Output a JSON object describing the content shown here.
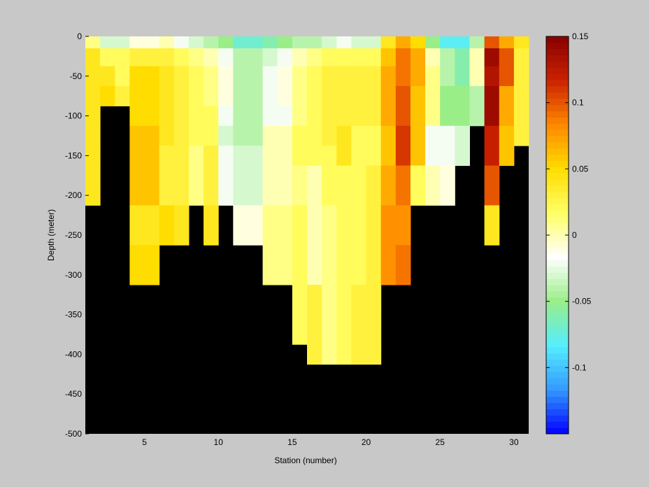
{
  "chart_data": {
    "type": "heatmap",
    "title": "",
    "xlabel": "Station (number)",
    "ylabel": "Depth (meter)",
    "xlim": [
      1,
      31
    ],
    "ylim": [
      -500,
      0
    ],
    "xticks": [
      5,
      10,
      15,
      20,
      25,
      30
    ],
    "yticks": [
      0,
      -50,
      -100,
      -150,
      -200,
      -250,
      -300,
      -350,
      -400,
      -450,
      -500
    ],
    "colorbar": {
      "limits": [
        -0.15,
        0.15
      ],
      "ticks": [
        0.15,
        0.1,
        0.05,
        0,
        -0.05,
        -0.1
      ],
      "colormap": [
        "#0000ff",
        "#3399ff",
        "#55eeff",
        "#99ee88",
        "#ffffff",
        "#ffff66",
        "#ffdd00",
        "#ff8800",
        "#cc2200",
        "#880000"
      ]
    },
    "background_color": "#000000",
    "depth_levels": [
      -5,
      -25,
      -50,
      -75,
      -100,
      -125,
      -150,
      -175,
      -200,
      -225,
      -250,
      -275,
      -300,
      -325,
      -350,
      -375,
      -400
    ],
    "stations": [
      {
        "station": 1,
        "values": [
          0.01,
          0.04,
          0.04,
          0.04,
          0.04,
          0.04,
          0.04,
          0.04,
          0.04
        ]
      },
      {
        "station": 2,
        "values": [
          -0.03,
          0.02,
          0.04,
          0.05
        ]
      },
      {
        "station": 3,
        "values": [
          -0.03,
          0.02,
          0.02,
          0.03
        ]
      },
      {
        "station": 4,
        "values": [
          -0.01,
          0.03,
          0.05,
          0.05,
          0.05,
          0.06,
          0.06,
          0.06,
          0.06,
          0.04,
          0.04,
          0.05,
          0.05
        ]
      },
      {
        "station": 5,
        "values": [
          -0.01,
          0.03,
          0.05,
          0.05,
          0.05,
          0.06,
          0.06,
          0.06,
          0.06,
          0.04,
          0.04,
          0.05,
          0.05
        ]
      },
      {
        "station": 6,
        "values": [
          0.0,
          0.03,
          0.04,
          0.04,
          0.04,
          0.04,
          0.03,
          0.03,
          0.03,
          0.05,
          0.05
        ]
      },
      {
        "station": 7,
        "values": [
          -0.02,
          0.02,
          0.03,
          0.03,
          0.03,
          0.03,
          0.03,
          0.03,
          0.03,
          0.04,
          0.04
        ]
      },
      {
        "station": 8,
        "values": [
          -0.03,
          0.01,
          0.02,
          0.02,
          0.02,
          0.02,
          0.01,
          0.01,
          0.01
        ]
      },
      {
        "station": 9,
        "values": [
          -0.04,
          0.0,
          0.01,
          0.01,
          0.02,
          0.02,
          0.03,
          0.03,
          0.03,
          0.04,
          0.04
        ]
      },
      {
        "station": 10,
        "values": [
          -0.05,
          -0.02,
          -0.01,
          -0.01,
          -0.02,
          -0.03,
          -0.02,
          -0.02,
          -0.02
        ]
      },
      {
        "station": 11,
        "values": [
          -0.07,
          -0.04,
          -0.04,
          -0.04,
          -0.04,
          -0.04,
          -0.03,
          -0.03,
          -0.03,
          -0.01,
          -0.01
        ]
      },
      {
        "station": 12,
        "values": [
          -0.07,
          -0.04,
          -0.04,
          -0.04,
          -0.04,
          -0.04,
          -0.03,
          -0.03,
          -0.03,
          -0.01,
          -0.01
        ]
      },
      {
        "station": 13,
        "values": [
          -0.06,
          -0.03,
          -0.02,
          -0.02,
          -0.02,
          0.0,
          0.0,
          0.0,
          0.0,
          0.01,
          0.01,
          0.01,
          0.01
        ]
      },
      {
        "station": 14,
        "values": [
          -0.05,
          -0.02,
          -0.01,
          -0.01,
          -0.02,
          0.0,
          0.0,
          0.0,
          0.0,
          0.01,
          0.01,
          0.01,
          0.01
        ]
      },
      {
        "station": 15,
        "values": [
          -0.04,
          0.0,
          0.01,
          0.01,
          0.01,
          0.02,
          0.02,
          0.01,
          0.01,
          0.02,
          0.02,
          0.02,
          0.02,
          0.02,
          0.02,
          0.02
        ]
      },
      {
        "station": 16,
        "values": [
          -0.04,
          0.01,
          0.02,
          0.02,
          0.02,
          0.02,
          0.02,
          0.0,
          0.0,
          0.0,
          0.0,
          0.0,
          0.0,
          0.03,
          0.03,
          0.03,
          0.03
        ]
      },
      {
        "station": 17,
        "values": [
          -0.03,
          0.02,
          0.03,
          0.03,
          0.03,
          0.03,
          0.02,
          0.02,
          0.02,
          0.01,
          0.01,
          0.01,
          0.01,
          0.01,
          0.01,
          0.01,
          0.01
        ]
      },
      {
        "station": 18,
        "values": [
          -0.02,
          0.02,
          0.03,
          0.03,
          0.03,
          0.04,
          0.04,
          0.02,
          0.02,
          0.02,
          0.02,
          0.02,
          0.02,
          0.02,
          0.02,
          0.02,
          0.02
        ]
      },
      {
        "station": 19,
        "values": [
          -0.03,
          0.02,
          0.03,
          0.03,
          0.03,
          0.02,
          0.02,
          0.02,
          0.02,
          0.02,
          0.02,
          0.02,
          0.02,
          0.03,
          0.03,
          0.03,
          0.03
        ]
      },
      {
        "station": 20,
        "values": [
          -0.03,
          0.02,
          0.03,
          0.03,
          0.03,
          0.02,
          0.02,
          0.03,
          0.03,
          0.03,
          0.03,
          0.03,
          0.03,
          0.03,
          0.03,
          0.03,
          0.03
        ]
      },
      {
        "station": 21,
        "values": [
          0.04,
          0.06,
          0.07,
          0.07,
          0.07,
          0.06,
          0.06,
          0.07,
          0.07,
          0.08,
          0.08,
          0.08,
          0.08
        ]
      },
      {
        "station": 22,
        "values": [
          0.07,
          0.09,
          0.09,
          0.1,
          0.1,
          0.11,
          0.11,
          0.09,
          0.09,
          0.08,
          0.08,
          0.09,
          0.09
        ]
      },
      {
        "station": 23,
        "values": [
          0.05,
          0.07,
          0.07,
          0.06,
          0.06,
          0.06,
          0.06,
          0.02,
          0.02
        ]
      },
      {
        "station": 24,
        "values": [
          -0.05,
          0.0,
          0.01,
          0.01,
          0.01,
          -0.02,
          -0.02,
          0.0,
          0.0
        ]
      },
      {
        "station": 25,
        "values": [
          -0.08,
          -0.04,
          -0.04,
          -0.05,
          -0.05,
          -0.02,
          -0.02,
          -0.01,
          -0.01
        ]
      },
      {
        "station": 26,
        "values": [
          -0.08,
          -0.06,
          -0.06,
          -0.05,
          -0.05,
          -0.03,
          -0.03
        ]
      },
      {
        "station": 27,
        "values": [
          -0.04,
          0.0,
          0.0,
          -0.04,
          -0.04
        ]
      },
      {
        "station": 28,
        "values": [
          0.1,
          0.14,
          0.13,
          0.14,
          0.14,
          0.12,
          0.12,
          0.1,
          0.1,
          0.04,
          0.04
        ]
      },
      {
        "station": 29,
        "values": [
          0.07,
          0.1,
          0.1,
          0.07,
          0.07,
          0.06,
          0.06
        ]
      },
      {
        "station": 30,
        "values": [
          0.04,
          0.03,
          0.03,
          0.03,
          0.03,
          0.03
        ]
      }
    ]
  }
}
